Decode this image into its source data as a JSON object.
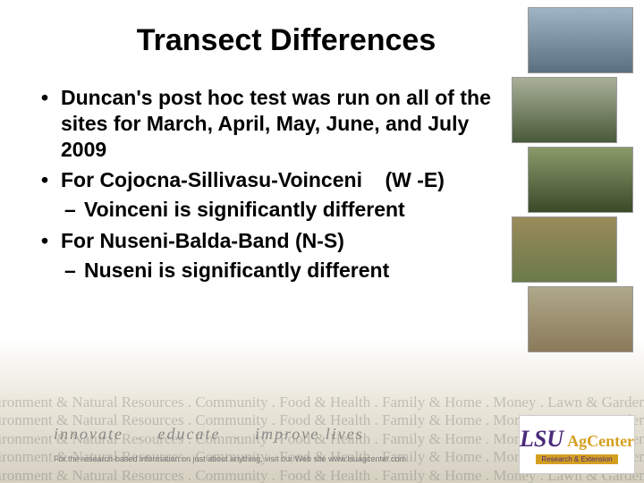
{
  "title": "Transect Differences",
  "bullets": {
    "b1": "Duncan's post hoc test was run on all of the sites for March, April, May, June, and July 2009",
    "b2": "For Cojocna-Sillivasu-Voinceni    (W -E)",
    "b2sub": "Voinceni is significantly different",
    "b3": "For Nuseni-Balda-Band (N-S)",
    "b3sub": "Nuseni is significantly different"
  },
  "tagline": {
    "w1": "innovate",
    "w2": "educate",
    "w3": "improve lives"
  },
  "footer_note": "For the research-based information on just about anything, visit our Web site www.lsuagcenter.com",
  "logo": {
    "lsu": "LSU",
    "ag": "AgCenter",
    "sub": "Research & Extension"
  },
  "colors": {
    "title": "#000000",
    "text": "#000000",
    "bg_top": "#ffffff",
    "bg_bottom": "#d5d0c0",
    "logo_purple": "#4a2a7a",
    "logo_gold": "#d4a020"
  },
  "bg_words": "Environment & Natural Resources . Community . Food & Health . Family & Home . Money . Lawn & Garden . Business . Crops & Livestock"
}
